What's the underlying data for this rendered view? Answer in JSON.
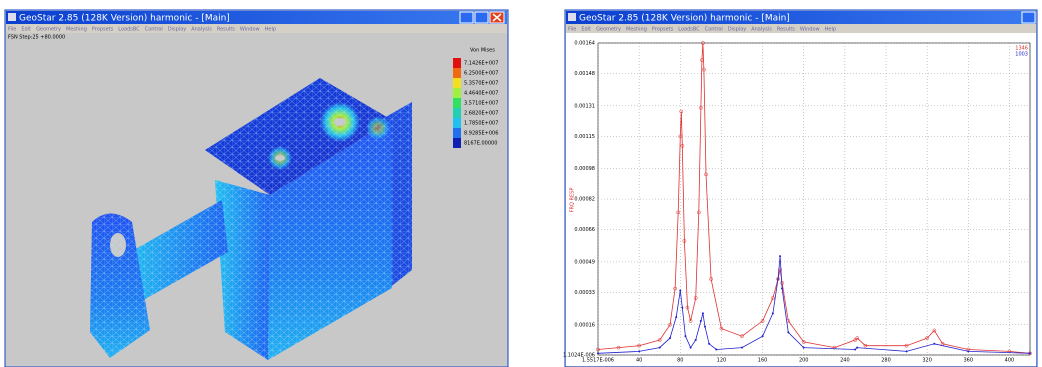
{
  "left_window": {
    "title": "GeoStar 2.85 (128K Version) harmonic - [Main]",
    "menu": [
      "File",
      "Edit",
      "Geometry",
      "Meshing",
      "Propsets",
      "LoadsBC",
      "Control",
      "Display",
      "Analysis",
      "Results",
      "Window",
      "Help"
    ],
    "status": "FSN Step:25 +80.0000",
    "legend": {
      "title": "Von Mises",
      "entries": [
        {
          "label": "7.1426E+007",
          "color": "#e01010"
        },
        {
          "label": "6.2500E+007",
          "color": "#f06a10"
        },
        {
          "label": "5.3570E+007",
          "color": "#f0e020"
        },
        {
          "label": "4.4640E+007",
          "color": "#a0f040"
        },
        {
          "label": "3.5710E+007",
          "color": "#30e060"
        },
        {
          "label": "2.6820E+007",
          "color": "#20d0b0"
        },
        {
          "label": "1.7850E+007",
          "color": "#20c0f0"
        },
        {
          "label": "8.9285E+006",
          "color": "#2070f0"
        },
        {
          "label": "8167E.00000",
          "color": "#1020b0"
        }
      ]
    }
  },
  "right_window": {
    "title": "GeoStar 2.85 (128K Version) harmonic - [Main]",
    "menu": [
      "File",
      "Edit",
      "Geometry",
      "Meshing",
      "Propsets",
      "LoadsBC",
      "Control",
      "Display",
      "Analysis",
      "Results",
      "Window",
      "Help"
    ],
    "chart_data": {
      "type": "line",
      "y_label": "FRQ RESP",
      "grid": true,
      "xlim": [
        1.5517e-06,
        420
      ],
      "xticks": [
        {
          "value": 1.5517e-06,
          "label": "1.5517E-006"
        },
        40,
        80,
        120,
        160,
        200,
        240,
        280,
        320,
        360,
        400
      ],
      "ylim": [
        1.1024e-06,
        0.00164
      ],
      "yticks": [
        {
          "value": 1.1024e-06,
          "label": "1.1024E-006"
        },
        0.00016,
        0.00033,
        0.00049,
        0.00066,
        0.00082,
        0.00098,
        0.00115,
        0.00131,
        0.00148,
        0.00164
      ],
      "series": [
        {
          "name": "1346",
          "color": "#e03030",
          "x": [
            0,
            20,
            40,
            60,
            70,
            75,
            78,
            80,
            81,
            82,
            84,
            87,
            90,
            95,
            98,
            100,
            101,
            102,
            103,
            105,
            110,
            120,
            140,
            160,
            170,
            175,
            177,
            179,
            185,
            200,
            230,
            250,
            252,
            260,
            300,
            320,
            327,
            335,
            360,
            400,
            420
          ],
          "values": [
            3e-05,
            4e-05,
            5e-05,
            8e-05,
            0.00016,
            0.00035,
            0.00075,
            0.00115,
            0.00128,
            0.0011,
            0.0006,
            0.00025,
            0.00018,
            0.0003,
            0.00075,
            0.0013,
            0.00155,
            0.00164,
            0.0015,
            0.00095,
            0.0004,
            0.00014,
            0.0001,
            0.00018,
            0.0003,
            0.0004,
            0.00045,
            0.00038,
            0.00018,
            7e-05,
            4e-05,
            8e-05,
            9e-05,
            5e-05,
            5e-05,
            9e-05,
            0.00013,
            6e-05,
            3e-05,
            2e-05,
            1e-05
          ]
        },
        {
          "name": "1003",
          "color": "#2020d0",
          "x": [
            0,
            40,
            60,
            70,
            76,
            80,
            82,
            85,
            90,
            95,
            100,
            102,
            104,
            108,
            115,
            140,
            160,
            170,
            175,
            177,
            179,
            185,
            200,
            250,
            252,
            300,
            327,
            360,
            420
          ],
          "values": [
            1e-05,
            2e-05,
            4e-05,
            9e-05,
            0.0002,
            0.00034,
            0.00025,
            0.0001,
            4e-05,
            8e-05,
            0.00018,
            0.00022,
            0.00015,
            6e-05,
            3e-05,
            4e-05,
            0.0001,
            0.00022,
            0.0004,
            0.00052,
            0.00035,
            0.00012,
            4e-05,
            3e-05,
            4e-05,
            2e-05,
            6e-05,
            2e-05,
            1e-05
          ]
        }
      ]
    }
  }
}
